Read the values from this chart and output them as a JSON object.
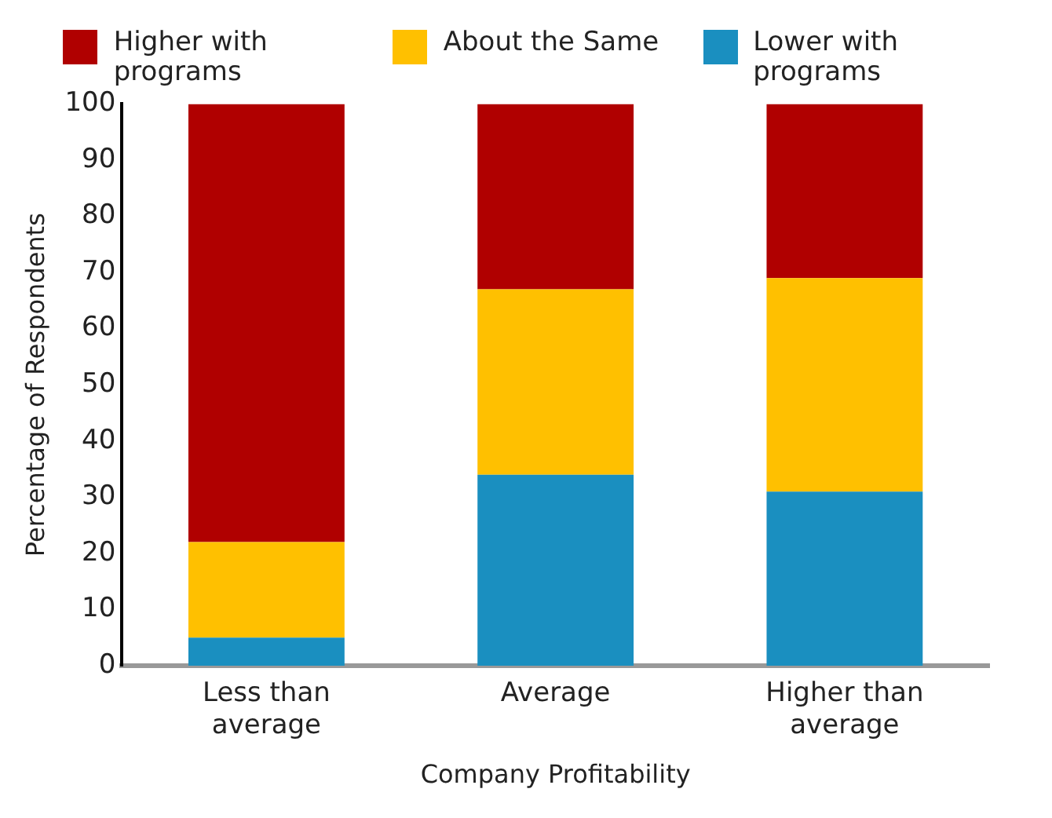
{
  "chart_data": {
    "type": "bar",
    "stacked": true,
    "xlabel": "Company Profitability",
    "ylabel": "Percentage of Respondents",
    "categories": [
      "Less than average",
      "Average",
      "Higher than average"
    ],
    "series": [
      {
        "name": "Lower with programs",
        "color": "#1a8fc0",
        "values": [
          5,
          34,
          31
        ]
      },
      {
        "name": "About the Same",
        "color": "#ffc000",
        "values": [
          17,
          33,
          38
        ]
      },
      {
        "name": "Higher with programs",
        "color": "#b00000",
        "values": [
          78,
          33,
          31
        ]
      }
    ],
    "ylim": [
      0,
      100
    ],
    "yticks": [
      0,
      10,
      20,
      30,
      40,
      50,
      60,
      70,
      80,
      90,
      100
    ],
    "grid": false,
    "legend": "top"
  }
}
